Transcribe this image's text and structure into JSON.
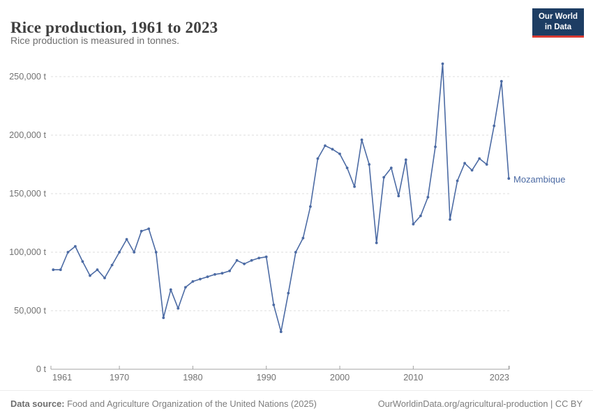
{
  "header": {
    "title": "Rice production, 1961 to 2023",
    "subtitle": "Rice production is measured in tonnes."
  },
  "logo": {
    "line1": "Our World",
    "line2": "in Data"
  },
  "colors": {
    "line": "#4C6BA4",
    "grid": "#dcdcdc",
    "axis": "#a3a3a3",
    "tick_text": "#737373",
    "logo_bg": "#1d3d63",
    "logo_accent": "#d93a32"
  },
  "entity_label": "Mozambique",
  "footer": {
    "source_label": "Data source:",
    "source_text": " Food and Agriculture Organization of the United Nations (2025)",
    "right_text": "OurWorldinData.org/agricultural-production | CC BY"
  },
  "chart_data": {
    "type": "line",
    "title": "Rice production, 1961 to 2023",
    "ylabel": "",
    "xlabel": "",
    "unit": "tonnes",
    "grid": "horizontal-dashed",
    "legend_position": "end-of-line-label",
    "ylim": [
      0,
      262000
    ],
    "xlim": [
      1961,
      2023
    ],
    "x": [
      1961,
      1962,
      1963,
      1964,
      1965,
      1966,
      1967,
      1968,
      1969,
      1970,
      1971,
      1972,
      1973,
      1974,
      1975,
      1976,
      1977,
      1978,
      1979,
      1980,
      1981,
      1982,
      1983,
      1984,
      1985,
      1986,
      1987,
      1988,
      1989,
      1990,
      1991,
      1992,
      1993,
      1994,
      1995,
      1996,
      1997,
      1998,
      1999,
      2000,
      2001,
      2002,
      2003,
      2004,
      2005,
      2006,
      2007,
      2008,
      2009,
      2010,
      2011,
      2012,
      2013,
      2014,
      2015,
      2016,
      2017,
      2018,
      2019,
      2020,
      2021,
      2022,
      2023
    ],
    "series": [
      {
        "name": "Mozambique",
        "values": [
          85000,
          85000,
          100000,
          105000,
          92000,
          80000,
          85000,
          78000,
          89000,
          100000,
          111000,
          100000,
          118000,
          120000,
          100000,
          44000,
          68000,
          52000,
          70000,
          75000,
          77000,
          79000,
          81000,
          82000,
          84000,
          93000,
          90000,
          93000,
          95000,
          96000,
          55000,
          32000,
          65000,
          100000,
          112000,
          139000,
          180000,
          191000,
          188000,
          184000,
          172000,
          156000,
          196000,
          175000,
          108000,
          164000,
          172000,
          148000,
          179000,
          124000,
          131000,
          147000,
          190000,
          261000,
          128000,
          161000,
          176000,
          170000,
          180000,
          175000,
          208000,
          246000,
          163000
        ]
      }
    ],
    "y_ticks": [
      {
        "value": 0,
        "label": "0 t"
      },
      {
        "value": 50000,
        "label": "50,000 t"
      },
      {
        "value": 100000,
        "label": "100,000 t"
      },
      {
        "value": 150000,
        "label": "150,000 t"
      },
      {
        "value": 200000,
        "label": "200,000 t"
      },
      {
        "value": 250000,
        "label": "250,000 t"
      }
    ],
    "x_ticks": [
      {
        "year": 1961,
        "label": "1961",
        "anchor": "start",
        "tick": false
      },
      {
        "year": 1970,
        "label": "1970",
        "anchor": "middle",
        "tick": true
      },
      {
        "year": 1980,
        "label": "1980",
        "anchor": "middle",
        "tick": true
      },
      {
        "year": 1990,
        "label": "1990",
        "anchor": "middle",
        "tick": true
      },
      {
        "year": 2000,
        "label": "2000",
        "anchor": "middle",
        "tick": true
      },
      {
        "year": 2010,
        "label": "2010",
        "anchor": "middle",
        "tick": true
      },
      {
        "year": 2023,
        "label": "2023",
        "anchor": "end",
        "tick": true
      }
    ]
  }
}
